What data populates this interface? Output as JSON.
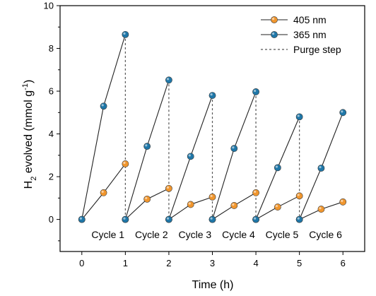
{
  "chart_data": {
    "type": "line",
    "xlabel": "Time (h)",
    "ylabel": "H2 evolved (mmol g-1)",
    "xlim": [
      -0.5,
      6.5
    ],
    "ylim": [
      -1.5,
      10
    ],
    "x_ticks": [
      0,
      1,
      2,
      3,
      4,
      5,
      6
    ],
    "y_ticks": [
      0,
      2,
      4,
      6,
      8,
      10
    ],
    "grid": false,
    "legend_position": "top-right",
    "colors": {
      "405 nm": "#f0962e",
      "365 nm": "#1f77a8",
      "line": "#222222",
      "purge": "#555555"
    },
    "series": [
      {
        "name": "405 nm",
        "segments": [
          [
            [
              0,
              0
            ],
            [
              0.5,
              1.25
            ],
            [
              1,
              2.6
            ]
          ],
          [
            [
              1,
              0
            ],
            [
              1.5,
              0.95
            ],
            [
              2,
              1.45
            ]
          ],
          [
            [
              2,
              0
            ],
            [
              2.5,
              0.7
            ],
            [
              3,
              1.05
            ]
          ],
          [
            [
              3,
              0
            ],
            [
              3.5,
              0.65
            ],
            [
              4,
              1.25
            ]
          ],
          [
            [
              4,
              0
            ],
            [
              4.5,
              0.58
            ],
            [
              5,
              1.1
            ]
          ],
          [
            [
              5,
              0
            ],
            [
              5.5,
              0.48
            ],
            [
              6,
              0.82
            ]
          ]
        ]
      },
      {
        "name": "365 nm",
        "segments": [
          [
            [
              0,
              0
            ],
            [
              0.5,
              5.3
            ],
            [
              1,
              8.65
            ]
          ],
          [
            [
              1,
              0
            ],
            [
              1.5,
              3.42
            ],
            [
              2,
              6.52
            ]
          ],
          [
            [
              2,
              0
            ],
            [
              2.5,
              2.95
            ],
            [
              3,
              5.8
            ]
          ],
          [
            [
              3,
              0
            ],
            [
              3.5,
              3.32
            ],
            [
              4,
              5.97
            ]
          ],
          [
            [
              4,
              0
            ],
            [
              4.5,
              2.42
            ],
            [
              5,
              4.8
            ]
          ],
          [
            [
              5,
              0
            ],
            [
              5.5,
              2.4
            ],
            [
              6,
              5.0
            ]
          ]
        ]
      }
    ],
    "purge_steps": [
      {
        "x": 1,
        "y": 8.65
      },
      {
        "x": 2,
        "y": 6.52
      },
      {
        "x": 3,
        "y": 5.8
      },
      {
        "x": 4,
        "y": 5.97
      },
      {
        "x": 5,
        "y": 4.8
      }
    ],
    "legend": [
      "405 nm",
      "365 nm",
      "Purge step"
    ],
    "annotations": [
      {
        "text": "Cycle 1",
        "x": 0.6
      },
      {
        "text": "Cycle 2",
        "x": 1.6
      },
      {
        "text": "Cycle 3",
        "x": 2.6
      },
      {
        "text": "Cycle 4",
        "x": 3.6
      },
      {
        "text": "Cycle 5",
        "x": 4.6
      },
      {
        "text": "Cycle 6",
        "x": 5.6
      }
    ],
    "annotation_y": -0.7
  }
}
